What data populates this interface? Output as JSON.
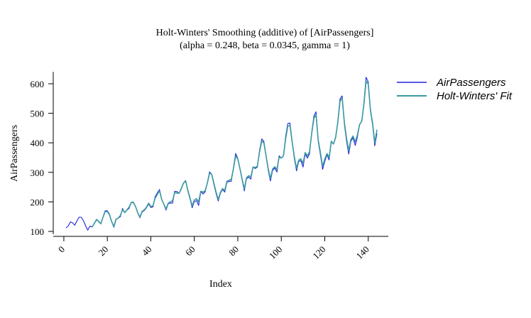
{
  "chart_data": {
    "type": "line",
    "title": "Holt-Winters' Smoothing (additive) of [AirPassengers]",
    "subtitle": "(alpha = 0.248, beta = 0.0345, gamma = 1)",
    "xlabel": "Index",
    "ylabel": "AirPassengers",
    "xlim": [
      1,
      144
    ],
    "ylim": [
      100,
      640
    ],
    "x_ticks": [
      0,
      20,
      40,
      60,
      80,
      100,
      120,
      140
    ],
    "y_ticks": [
      100,
      200,
      300,
      400,
      500,
      600
    ],
    "grid": false,
    "legend_position": "right",
    "colors": {
      "observed": "#2222dd",
      "fit": "#3a9aa0"
    },
    "series": [
      {
        "name": "AirPassengers",
        "x_start": 1,
        "values": [
          112,
          118,
          132,
          129,
          121,
          135,
          148,
          148,
          136,
          119,
          104,
          118,
          115,
          126,
          141,
          135,
          125,
          149,
          170,
          170,
          158,
          133,
          114,
          140,
          145,
          150,
          178,
          163,
          172,
          178,
          199,
          199,
          184,
          162,
          146,
          166,
          171,
          180,
          193,
          181,
          183,
          218,
          230,
          242,
          209,
          191,
          172,
          194,
          196,
          196,
          236,
          235,
          229,
          243,
          264,
          272,
          237,
          211,
          180,
          201,
          204,
          188,
          235,
          227,
          234,
          264,
          302,
          293,
          259,
          229,
          203,
          229,
          242,
          233,
          267,
          269,
          270,
          315,
          364,
          347,
          312,
          274,
          237,
          278,
          284,
          277,
          317,
          313,
          318,
          374,
          413,
          405,
          355,
          306,
          271,
          306,
          315,
          301,
          356,
          348,
          355,
          422,
          465,
          467,
          404,
          347,
          305,
          336,
          340,
          318,
          362,
          348,
          363,
          435,
          491,
          505,
          404,
          359,
          310,
          337,
          360,
          342,
          406,
          396,
          420,
          472,
          548,
          559,
          463,
          407,
          362,
          405,
          417,
          391,
          419,
          461,
          472,
          535,
          622,
          606,
          508,
          461,
          390,
          432
        ]
      },
      {
        "name": "Holt-Winters' Fit",
        "x_start": 13,
        "values": [
          115,
          127,
          140,
          134,
          126,
          148,
          167,
          167,
          156,
          133,
          117,
          141,
          145,
          154,
          174,
          164,
          173,
          182,
          198,
          197,
          184,
          163,
          148,
          168,
          173,
          182,
          196,
          184,
          187,
          213,
          225,
          238,
          208,
          192,
          176,
          196,
          200,
          204,
          231,
          230,
          229,
          245,
          263,
          271,
          240,
          214,
          186,
          206,
          211,
          200,
          236,
          233,
          238,
          264,
          297,
          294,
          263,
          234,
          208,
          232,
          245,
          239,
          270,
          273,
          276,
          312,
          356,
          345,
          313,
          277,
          244,
          281,
          289,
          284,
          318,
          316,
          321,
          369,
          406,
          400,
          356,
          311,
          279,
          311,
          319,
          310,
          352,
          348,
          356,
          414,
          456,
          459,
          404,
          353,
          313,
          341,
          346,
          330,
          367,
          356,
          370,
          432,
          483,
          495,
          409,
          366,
          320,
          345,
          364,
          350,
          404,
          396,
          418,
          470,
          540,
          552,
          469,
          416,
          373,
          411,
          423,
          403,
          426,
          462,
          473,
          530,
          609,
          599,
          512,
          466,
          400,
          444
        ]
      }
    ]
  }
}
